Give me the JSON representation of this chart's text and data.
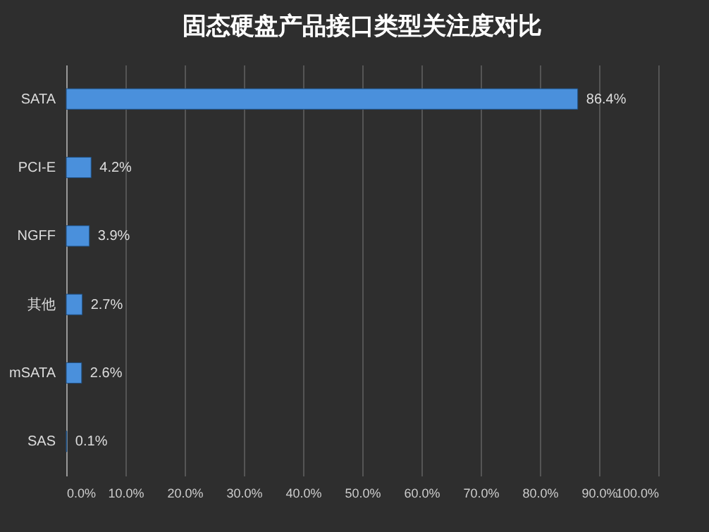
{
  "chart_data": {
    "type": "bar",
    "orientation": "horizontal",
    "title": "固态硬盘产品接口类型关注度对比",
    "categories": [
      "SATA",
      "PCI-E",
      "NGFF",
      "其他",
      "mSATA",
      "SAS"
    ],
    "values": [
      86.4,
      4.2,
      3.9,
      2.7,
      2.6,
      0.1
    ],
    "value_labels": [
      "86.4%",
      "4.2%",
      "3.9%",
      "2.7%",
      "2.6%",
      "0.1%"
    ],
    "color": "#4a90dc",
    "xlim": [
      0,
      100
    ],
    "xticks": [
      {
        "value": 0,
        "label": "0.0%"
      },
      {
        "value": 10,
        "label": "10.0%"
      },
      {
        "value": 20,
        "label": "20.0%"
      },
      {
        "value": 30,
        "label": "30.0%"
      },
      {
        "value": 40,
        "label": "40.0%"
      },
      {
        "value": 50,
        "label": "50.0%"
      },
      {
        "value": 60,
        "label": "60.0%"
      },
      {
        "value": 70,
        "label": "70.0%"
      },
      {
        "value": 80,
        "label": "80.0%"
      },
      {
        "value": 90,
        "label": "90.0%"
      },
      {
        "value": 100,
        "label": "100.0%"
      }
    ],
    "grid": "x"
  }
}
